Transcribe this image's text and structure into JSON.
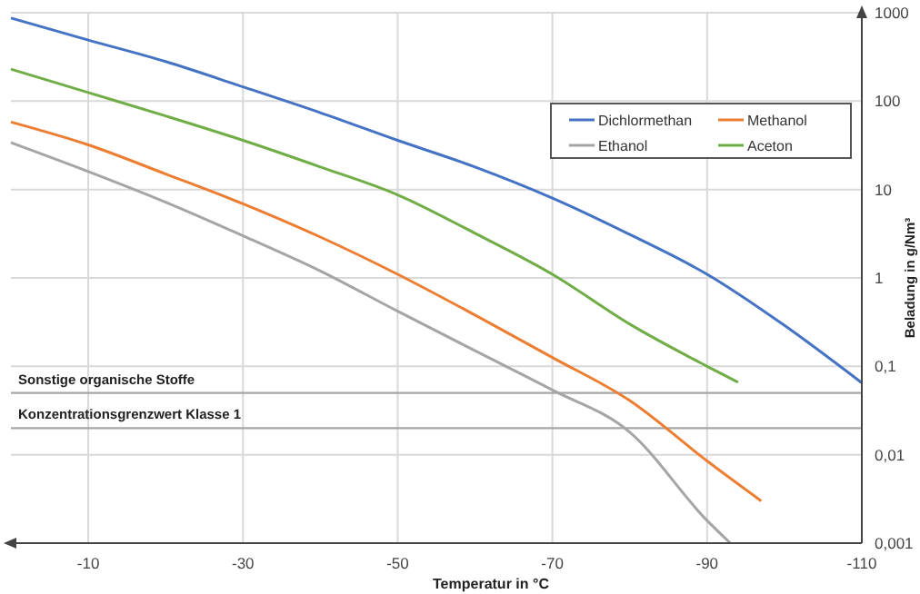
{
  "chart_data": {
    "type": "line",
    "xlabel": "Temperatur in °C",
    "ylabel": "Beladung in g/Nm³",
    "x": [
      0,
      -10,
      -20,
      -30,
      -40,
      -50,
      -60,
      -70,
      -80,
      -90,
      -100,
      -110
    ],
    "series": [
      {
        "name": "Dichlormethan",
        "color": "#4472c4",
        "values": [
          870,
          490,
          280,
          145,
          74,
          36,
          18,
          8,
          3.1,
          1.1,
          0.29,
          0.065
        ]
      },
      {
        "name": "Methanol",
        "color": "#ed7d31",
        "x": [
          0,
          -10,
          -20,
          -30,
          -40,
          -50,
          -60,
          -70,
          -80,
          -90,
          -97
        ],
        "values": [
          58,
          32,
          15,
          6.9,
          2.9,
          1.1,
          0.38,
          0.126,
          0.041,
          0.0085,
          0.003
        ]
      },
      {
        "name": "Ethanol",
        "color": "#a5a5a5",
        "x": [
          0,
          -10,
          -20,
          -30,
          -40,
          -50,
          -60,
          -70,
          -80,
          -90,
          -93
        ],
        "values": [
          34,
          16,
          7.2,
          3,
          1.2,
          0.42,
          0.15,
          0.054,
          0.018,
          0.0018,
          0.001
        ]
      },
      {
        "name": "Aceton",
        "color": "#70ad47",
        "x": [
          0,
          -10,
          -20,
          -30,
          -40,
          -50,
          -60,
          -70,
          -80,
          -90,
          -94
        ],
        "values": [
          230,
          125,
          68,
          36,
          18,
          8.7,
          3.2,
          1.1,
          0.3,
          0.1,
          0.066
        ]
      }
    ],
    "xlim": [
      0,
      -110
    ],
    "xticks": [
      -10,
      -30,
      -50,
      -70,
      -90,
      -110
    ],
    "ylim": [
      0.001,
      1000
    ],
    "log": true,
    "yticks": [
      {
        "value": 0.001,
        "label": "0,001"
      },
      {
        "value": 0.01,
        "label": "0,01"
      },
      {
        "value": 0.1,
        "label": "0,1"
      },
      1,
      10,
      100,
      1000
    ],
    "grid": true,
    "legend": "top right",
    "ref_lines": [
      {
        "axis": "y",
        "value": 0.05,
        "label": "Sonstige organische Stoffe",
        "color": "#a6a6a6"
      },
      {
        "axis": "y",
        "value": 0.02,
        "label": "Konzentrationsgrenzwert Klasse 1",
        "color": "#a6a6a6"
      }
    ]
  }
}
